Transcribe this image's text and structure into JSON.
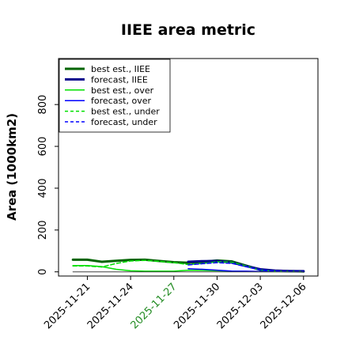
{
  "chart_data": {
    "type": "line",
    "title": "IIEE area metric",
    "xlabel": "",
    "ylabel": "Area (1000km2)",
    "x": [
      "2025-11-20",
      "2025-11-21",
      "2025-11-22",
      "2025-11-23",
      "2025-11-24",
      "2025-11-25",
      "2025-11-26",
      "2025-11-27",
      "2025-11-28",
      "2025-11-29",
      "2025-11-30",
      "2025-12-01",
      "2025-12-02",
      "2025-12-03",
      "2025-12-04",
      "2025-12-05",
      "2025-12-06"
    ],
    "xlim": [
      "2025-11-19",
      "2025-12-07"
    ],
    "ylim": [
      -20,
      1020
    ],
    "xticks": [
      "2025-11-21",
      "2025-11-24",
      "2025-11-27",
      "2025-11-30",
      "2025-12-03",
      "2025-12-06"
    ],
    "highlight_xtick": "2025-11-27",
    "yticks": [
      0,
      200,
      400,
      600,
      800
    ],
    "grid": false,
    "legend_position": "top-left",
    "series": [
      {
        "name": "best est., IIEE",
        "color": "#006400",
        "style": "solid",
        "width": 3,
        "values": [
          58,
          58,
          48,
          53,
          57,
          58,
          52,
          46,
          43,
          48,
          54,
          50,
          30,
          10,
          5,
          3,
          2
        ]
      },
      {
        "name": "forecast, IIEE",
        "color": "#00008b",
        "style": "solid",
        "width": 3,
        "values": [
          null,
          null,
          null,
          null,
          null,
          null,
          null,
          null,
          48,
          51,
          52,
          45,
          28,
          12,
          6,
          4,
          3
        ]
      },
      {
        "name": "best est., over",
        "color": "#00e000",
        "style": "solid",
        "width": 1.5,
        "values": [
          30,
          30,
          25,
          12,
          5,
          3,
          3,
          3,
          8,
          7,
          5,
          3,
          2,
          1,
          1,
          1,
          1
        ]
      },
      {
        "name": "forecast, over",
        "color": "#0000ff",
        "style": "solid",
        "width": 1.5,
        "values": [
          null,
          null,
          null,
          null,
          null,
          null,
          null,
          null,
          15,
          12,
          8,
          4,
          3,
          2,
          2,
          2,
          2
        ]
      },
      {
        "name": "best est., under",
        "color": "#00e000",
        "style": "dashed",
        "width": 1.5,
        "values": [
          28,
          28,
          23,
          40,
          52,
          55,
          50,
          44,
          35,
          40,
          48,
          46,
          28,
          9,
          4,
          2,
          1
        ]
      },
      {
        "name": "forecast, under",
        "color": "#0000ff",
        "style": "dashed",
        "width": 1.5,
        "values": [
          null,
          null,
          null,
          null,
          null,
          null,
          null,
          null,
          33,
          39,
          44,
          41,
          25,
          10,
          4,
          2,
          1
        ]
      },
      {
        "name": "",
        "color": "#404040",
        "style": "solid",
        "width": 1,
        "values": [
          0,
          0,
          0,
          0,
          0,
          0,
          0,
          0,
          0,
          0,
          0,
          0,
          0,
          0,
          0,
          0,
          0
        ]
      }
    ]
  }
}
